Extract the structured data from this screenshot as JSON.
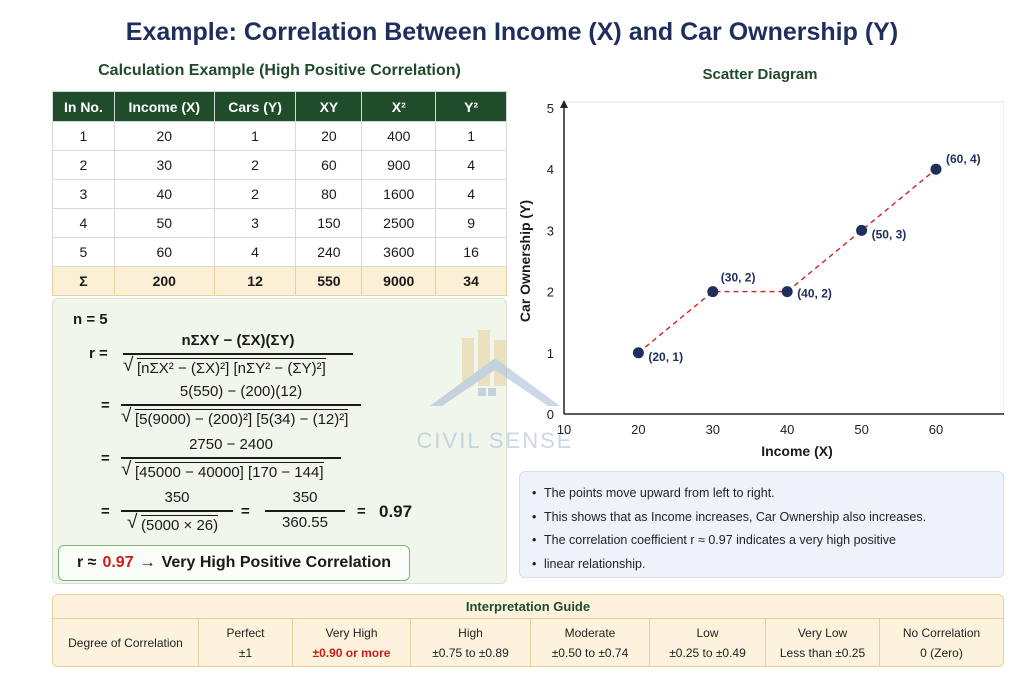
{
  "title": "Example: Correlation Between Income (X) and Car Ownership (Y)",
  "calc": {
    "heading": "Calculation Example (High Positive Correlation)",
    "columns": [
      "In No.",
      "Income (X)",
      "Cars (Y)",
      "XY",
      "X²",
      "Y²"
    ],
    "rows": [
      [
        "1",
        "20",
        "1",
        "20",
        "400",
        "1"
      ],
      [
        "2",
        "30",
        "2",
        "60",
        "900",
        "4"
      ],
      [
        "3",
        "40",
        "2",
        "80",
        "1600",
        "4"
      ],
      [
        "4",
        "50",
        "3",
        "150",
        "2500",
        "9"
      ],
      [
        "5",
        "60",
        "4",
        "240",
        "3600",
        "16"
      ]
    ],
    "sum": [
      "Σ",
      "200",
      "12",
      "550",
      "9000",
      "34"
    ]
  },
  "formula": {
    "n": "n = 5",
    "r_label": "r =",
    "eq": "=",
    "step1_num": "nΣXY − (ΣX)(ΣY)",
    "step1_den": "[nΣX² − (ΣX)²] [nΣY² − (ΣY)²]",
    "step2_num": "5(550) − (200)(12)",
    "step2_den": "[5(9000) − (200)²] [5(34) − (12)²]",
    "step3_num": "2750 − 2400",
    "step3_den": "[45000 − 40000] [170 − 144]",
    "step4_num": "350",
    "step4_den": "(5000 × 26)",
    "step4_num2": "350",
    "step4_den2": "360.55",
    "step4_result": "0.97",
    "sqrt_symbol": "√"
  },
  "result": {
    "prefix": "r ≈",
    "value": "0.97",
    "arrow": "→",
    "label": "Very High Positive Correlation"
  },
  "scatter_title": "Scatter Diagram",
  "chart_data": {
    "type": "scatter",
    "title": "Scatter Diagram",
    "xlabel": "Income (X)",
    "ylabel": "Car Ownership (Y)",
    "x": [
      20,
      30,
      40,
      50,
      60
    ],
    "y": [
      1,
      2,
      2,
      3,
      4
    ],
    "point_labels": [
      "(20, 1)",
      "(30, 2)",
      "(40, 2)",
      "(50, 3)",
      "(60, 4)"
    ],
    "xticks": [
      10,
      20,
      30,
      40,
      50,
      60
    ],
    "yticks": [
      0,
      1,
      2,
      3,
      4,
      5
    ],
    "xlim": [
      10,
      60
    ],
    "ylim": [
      0,
      5
    ],
    "grid": false,
    "connector_line": "dashed",
    "colors": {
      "point": "#1e2f5e",
      "line": "#d81e1e",
      "label": "#1e2f5e"
    }
  },
  "notes": [
    "The points move upward from left to right.",
    "This shows that as Income increases, Car Ownership also increases.",
    "The correlation coefficient r ≈ 0.97 indicates a very high positive",
    "linear relationship."
  ],
  "guide": {
    "title": "Interpretation Guide",
    "row_header": "Degree of Correlation",
    "cells": [
      {
        "label": "Perfect",
        "range": "±1",
        "highlight": false
      },
      {
        "label": "Very High",
        "range": "±0.90 or more",
        "highlight": true
      },
      {
        "label": "High",
        "range": "±0.75 to ±0.89",
        "highlight": false
      },
      {
        "label": "Moderate",
        "range": "±0.50 to ±0.74",
        "highlight": false
      },
      {
        "label": "Low",
        "range": "±0.25 to ±0.49",
        "highlight": false
      },
      {
        "label": "Very Low",
        "range": "Less than ±0.25",
        "highlight": false
      },
      {
        "label": "No Correlation",
        "range": "0 (Zero)",
        "highlight": false
      }
    ]
  },
  "watermark": {
    "text": "CIVIL SENSE",
    "color": "#8fa8cc"
  },
  "colors": {
    "title": "#1e2f5e",
    "header_green": "#1f4d2c",
    "sum_row": "#fbefd5",
    "accent_red": "#cc1b1b"
  }
}
